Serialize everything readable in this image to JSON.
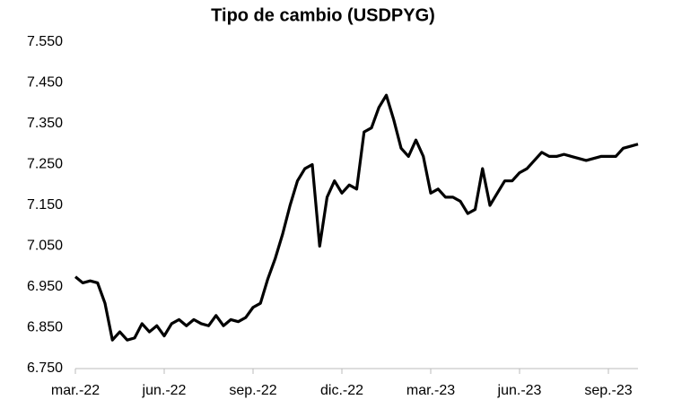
{
  "chart_data": {
    "type": "line",
    "title": "Tipo de cambio (USDPYG)",
    "categories": [
      "mar.-22",
      null,
      null,
      null,
      null,
      null,
      null,
      null,
      null,
      null,
      null,
      null,
      "jun.-22",
      null,
      null,
      null,
      null,
      null,
      null,
      null,
      null,
      null,
      null,
      null,
      "sep.-22",
      null,
      null,
      null,
      null,
      null,
      null,
      null,
      null,
      null,
      null,
      null,
      "dic.-22",
      null,
      null,
      null,
      null,
      null,
      null,
      null,
      null,
      null,
      null,
      null,
      "mar.-23",
      null,
      null,
      null,
      null,
      null,
      null,
      null,
      null,
      null,
      null,
      null,
      "jun.-23",
      null,
      null,
      null,
      null,
      null,
      null,
      null,
      null,
      null,
      null,
      null,
      "sep.-23",
      null,
      null,
      null,
      null
    ],
    "values": [
      6975,
      6960,
      6965,
      6960,
      6910,
      6820,
      6840,
      6820,
      6825,
      6860,
      6840,
      6855,
      6830,
      6860,
      6870,
      6855,
      6870,
      6860,
      6855,
      6880,
      6855,
      6870,
      6865,
      6875,
      6900,
      6910,
      6970,
      7020,
      7080,
      7150,
      7210,
      7240,
      7250,
      7050,
      7170,
      7210,
      7180,
      7200,
      7190,
      7330,
      7340,
      7390,
      7420,
      7360,
      7290,
      7270,
      7310,
      7270,
      7180,
      7190,
      7170,
      7170,
      7160,
      7130,
      7140,
      7240,
      7150,
      7180,
      7210,
      7210,
      7230,
      7240,
      7260,
      7280,
      7270,
      7270,
      7275,
      7270,
      7265,
      7260,
      7265,
      7270,
      7270,
      7270,
      7290,
      7295,
      7300
    ],
    "color": "#000000",
    "ylim": [
      6750,
      7550
    ],
    "yticks": [
      {
        "value": 6750,
        "label": "6.750"
      },
      {
        "value": 6850,
        "label": "6.850"
      },
      {
        "value": 6950,
        "label": "6.950"
      },
      {
        "value": 7050,
        "label": "7.050"
      },
      {
        "value": 7150,
        "label": "7.150"
      },
      {
        "value": 7250,
        "label": "7.250"
      },
      {
        "value": 7350,
        "label": "7.350"
      },
      {
        "value": 7450,
        "label": "7.450"
      },
      {
        "value": 7550,
        "label": "7.550"
      }
    ],
    "grid": false
  }
}
